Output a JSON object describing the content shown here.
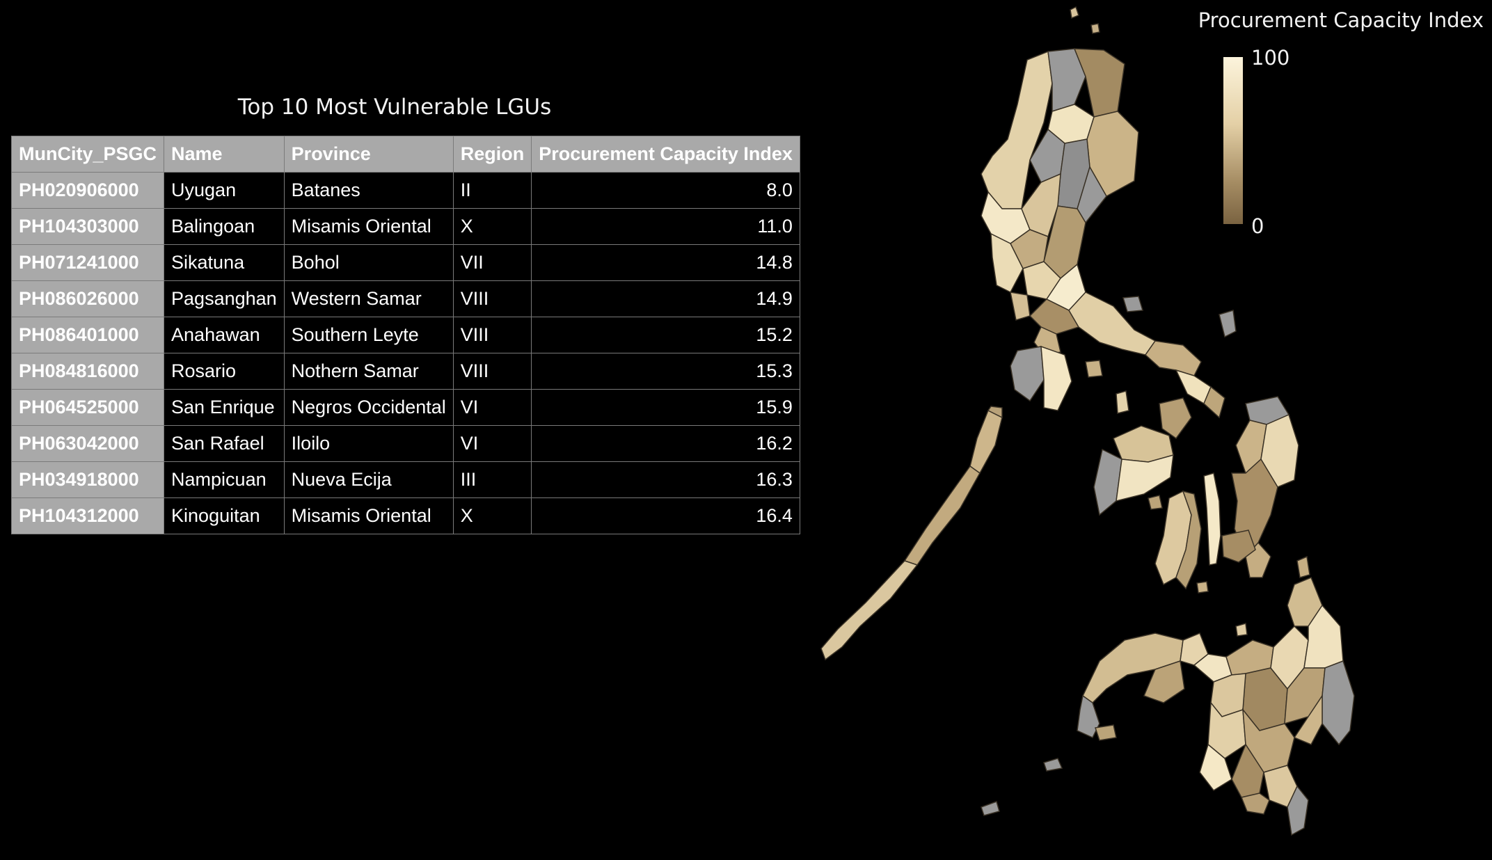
{
  "table": {
    "title": "Top 10 Most Vulnerable LGUs",
    "columns": [
      "MunCity_PSGC",
      "Name",
      "Province",
      "Region",
      "Procurement Capacity Index"
    ],
    "rows": [
      [
        "PH020906000",
        "Uyugan",
        "Batanes",
        "II",
        "8.0"
      ],
      [
        "PH104303000",
        "Balingoan",
        "Misamis Oriental",
        "X",
        "11.0"
      ],
      [
        "PH071241000",
        "Sikatuna",
        "Bohol",
        "VII",
        "14.8"
      ],
      [
        "PH086026000",
        "Pagsanghan",
        "Western Samar",
        "VIII",
        "14.9"
      ],
      [
        "PH086401000",
        "Anahawan",
        "Southern Leyte",
        "VIII",
        "15.2"
      ],
      [
        "PH084816000",
        "Rosario",
        "Nothern Samar",
        "VIII",
        "15.3"
      ],
      [
        "PH064525000",
        "San Enrique",
        "Negros Occidental",
        "VI",
        "15.9"
      ],
      [
        "PH063042000",
        "San Rafael",
        "Iloilo",
        "VI",
        "16.2"
      ],
      [
        "PH034918000",
        "Nampicuan",
        "Nueva Ecija",
        "III",
        "16.3"
      ],
      [
        "PH104312000",
        "Kinoguitan",
        "Misamis Oriental",
        "X",
        "16.4"
      ]
    ]
  },
  "legend": {
    "title": "Procurement Capacity Index",
    "max_label": "100",
    "min_label": "0",
    "color_max": "#fcf4dc",
    "color_min": "#7a6341",
    "no_data_color": "#8a8a8a"
  }
}
